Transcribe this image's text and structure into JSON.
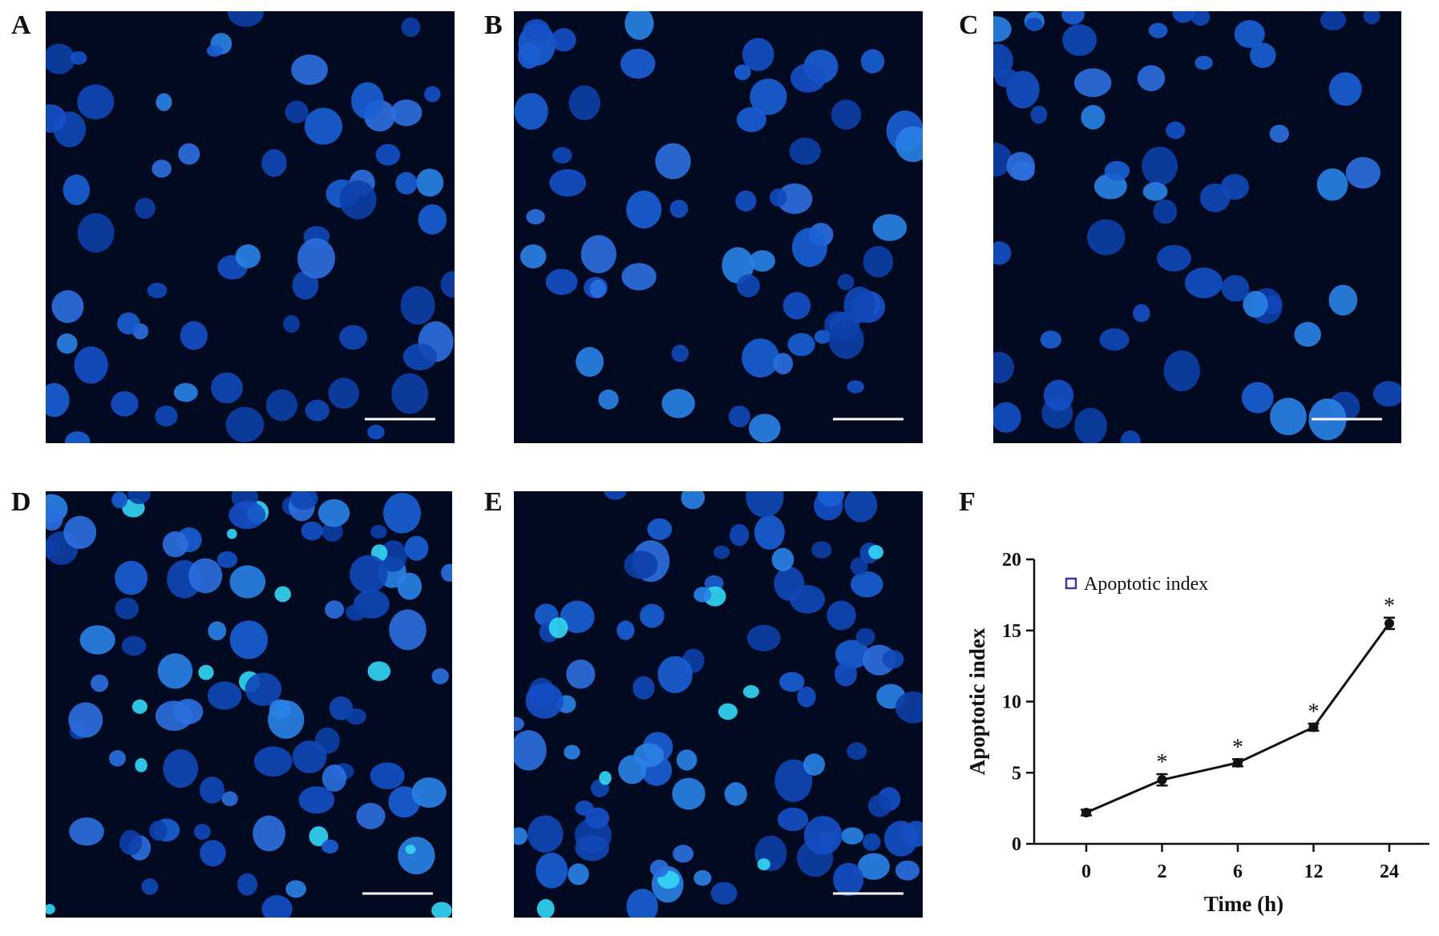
{
  "panels": [
    {
      "label": "A"
    },
    {
      "label": "B"
    },
    {
      "label": "C"
    },
    {
      "label": "D"
    },
    {
      "label": "E"
    }
  ],
  "chart_data": {
    "type": "line",
    "panel_label": "F",
    "x_label": "Time (h)",
    "y_label": "Apoptotic index",
    "categories": [
      "0",
      "2",
      "6",
      "12",
      "24"
    ],
    "series": [
      {
        "name": "Apoptotic index",
        "color": "#111111",
        "values": [
          2.2,
          4.5,
          5.7,
          8.2,
          15.5
        ],
        "errors": [
          0.2,
          0.4,
          0.25,
          0.25,
          0.4
        ]
      }
    ],
    "significance": [
      null,
      "*",
      "*",
      "*",
      "*"
    ],
    "ylim": [
      0,
      20
    ],
    "yticks": [
      0,
      5,
      10,
      15,
      20
    ],
    "legend": "upper left"
  }
}
